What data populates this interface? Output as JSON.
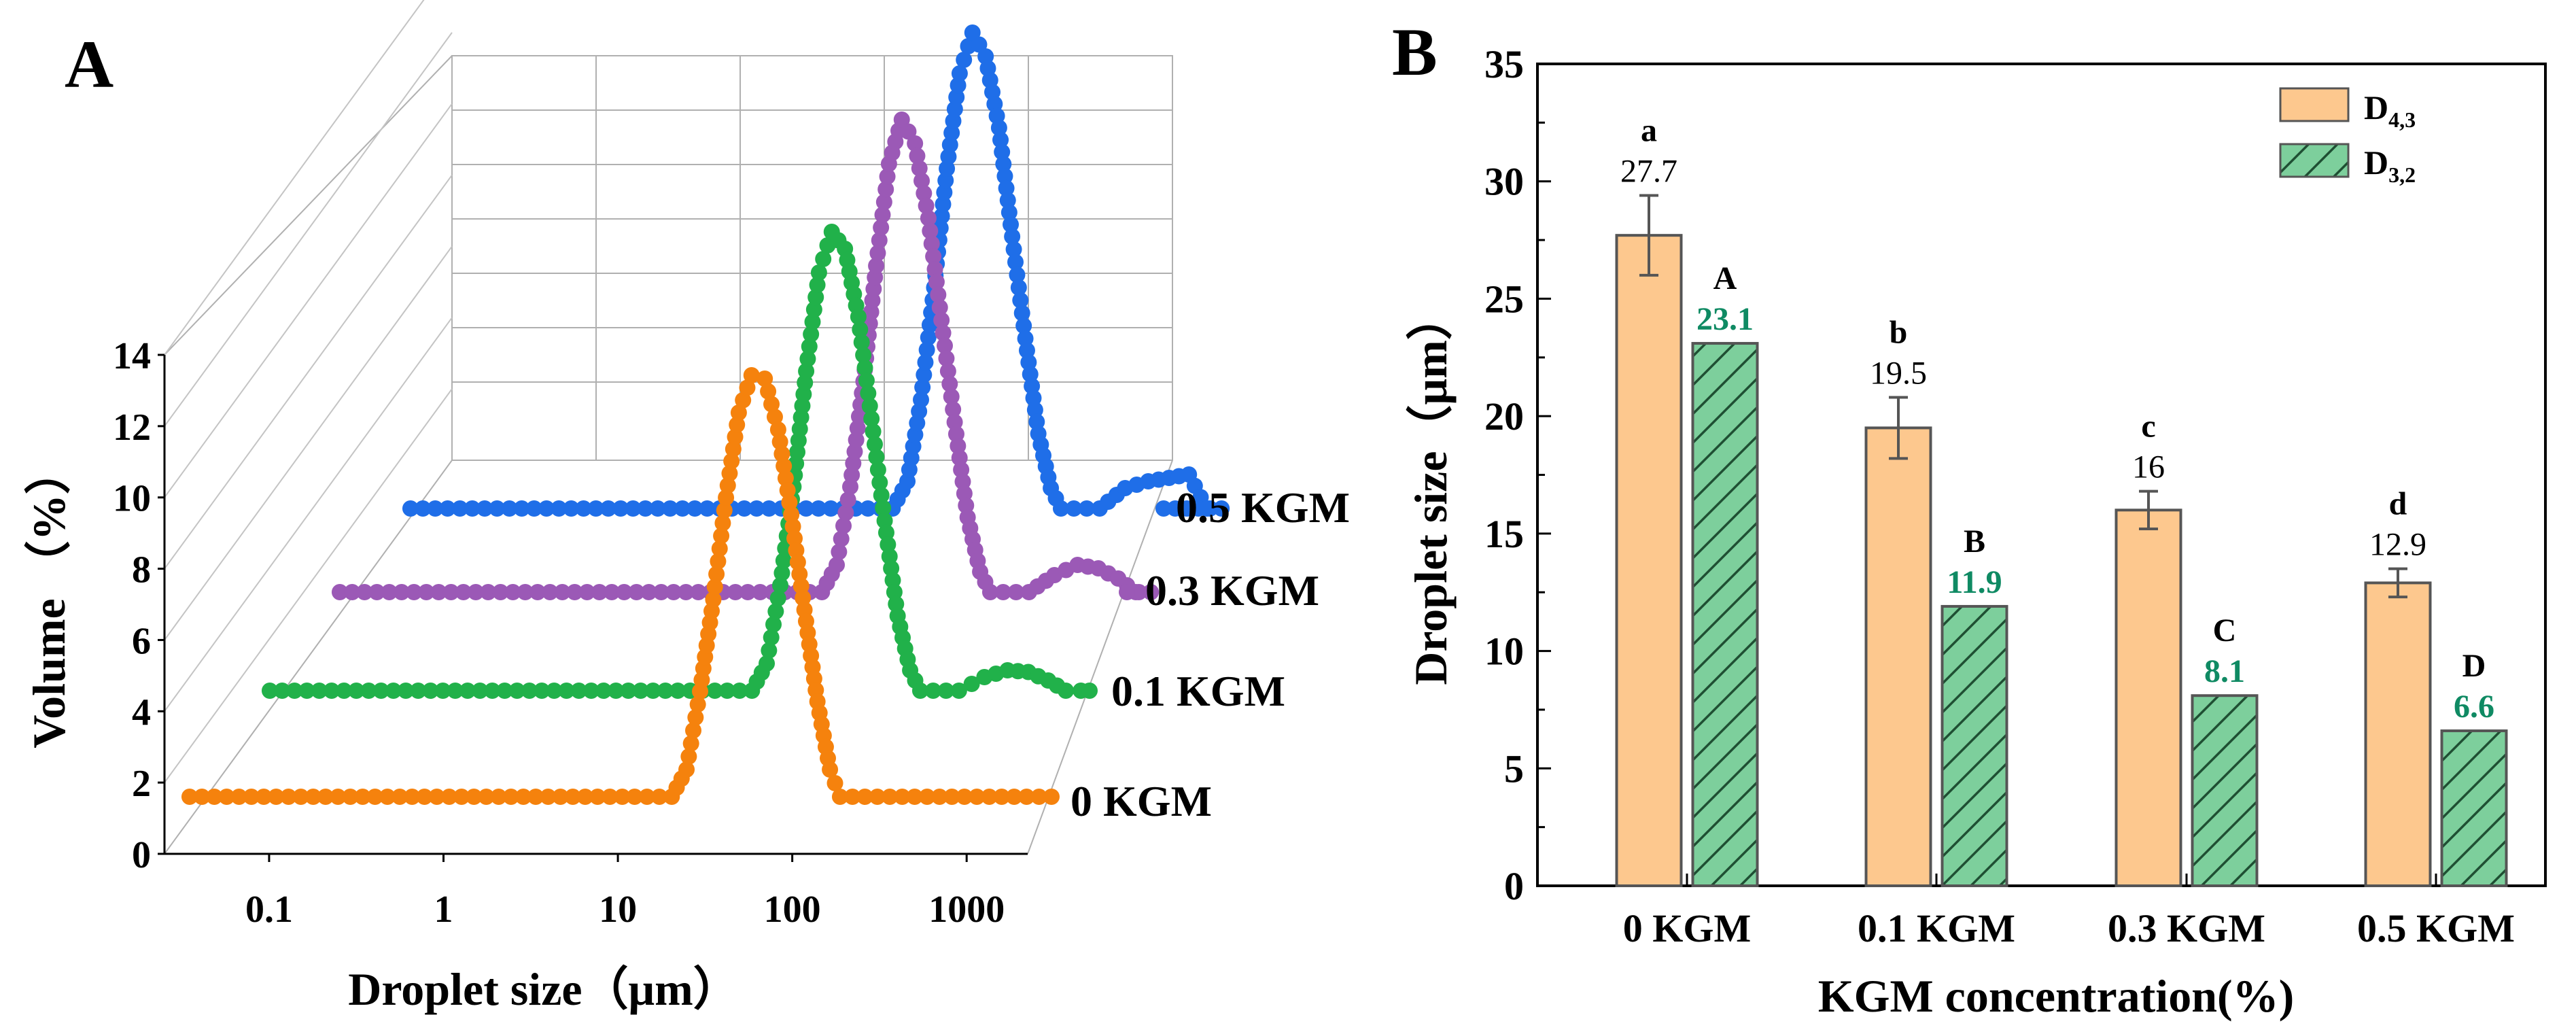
{
  "panels": {
    "a": {
      "label": "A"
    },
    "b": {
      "label": "B"
    }
  },
  "colors": {
    "orange": "#f5820d",
    "green": "#21b14a",
    "purple": "#9b59b6",
    "blue": "#1f6ee8",
    "bar_orange": "#fdc88e",
    "bar_green": "#7dcf9c",
    "value_green": "#0f8a63"
  },
  "chart_data": [
    {
      "type": "line",
      "subtype": "3d-waterfall",
      "panel": "A",
      "xlabel": "Droplet size（μm）",
      "ylabel": "Volume （%）",
      "x_ticks": [
        "0.1",
        "1",
        "10",
        "100",
        "1000"
      ],
      "y_ticks": [
        "0",
        "2",
        "4",
        "6",
        "8",
        "10",
        "12",
        "14"
      ],
      "xlim_log10": [
        -1.6,
        3.35
      ],
      "ylim": [
        0,
        14
      ],
      "series": [
        {
          "name": "0 KGM",
          "color": "#f5820d",
          "x": [
            13,
            15.8,
            18.9,
            22.5,
            26.6,
            31.5,
            37.3,
            44.4,
            53,
            63,
            75,
            89,
            105,
            120
          ],
          "y": [
            0,
            0.8,
            3.1,
            5.8,
            8.8,
            11.3,
            12.4,
            12.3,
            10.8,
            8.3,
            5.5,
            2.8,
            0.8,
            0
          ]
        },
        {
          "name": "0.1 KGM",
          "color": "#21b14a",
          "x": [
            13,
            15.8,
            18.9,
            22.5,
            26.6,
            31.5,
            37.3,
            44.4,
            53,
            63,
            75,
            89,
            105,
            120,
            200,
            280,
            380,
            500,
            650,
            820,
            1000
          ],
          "y": [
            0,
            0.8,
            3.1,
            6.0,
            9.4,
            12.3,
            13.5,
            13.0,
            11.0,
            8.0,
            5.0,
            2.2,
            0.6,
            0,
            0,
            0.4,
            0.6,
            0.55,
            0.3,
            0,
            0
          ]
        },
        {
          "name": "0.3 KGM",
          "color": "#9b59b6",
          "x": [
            13,
            15.8,
            18.9,
            22.5,
            26.6,
            31.5,
            37.3,
            44.4,
            53,
            63,
            75,
            89,
            105,
            120,
            200,
            280,
            380,
            500,
            650,
            820,
            1000
          ],
          "y": [
            0,
            0.8,
            3.1,
            6.2,
            9.6,
            12.6,
            13.9,
            13.2,
            11.0,
            8.0,
            5.0,
            2.2,
            0.6,
            0,
            0,
            0.5,
            0.8,
            0.7,
            0.4,
            0,
            0
          ]
        },
        {
          "name": "0.5 KGM",
          "color": "#1f6ee8",
          "x": [
            13,
            15.8,
            18.9,
            22.5,
            26.6,
            31.5,
            37.3,
            44.4,
            53,
            63,
            75,
            89,
            105,
            120,
            200,
            280,
            380,
            500,
            650,
            820,
            1000
          ],
          "y": [
            0,
            0.8,
            3.2,
            6.5,
            10.0,
            12.8,
            14.0,
            13.3,
            11.2,
            8.0,
            5.0,
            2.2,
            0.6,
            0,
            0,
            0.6,
            0.8,
            0.9,
            1.0,
            0,
            0
          ]
        }
      ]
    },
    {
      "type": "bar",
      "panel": "B",
      "xlabel": "KGM concentration(%)",
      "ylabel": "Droplet size（μm）",
      "ylim": [
        0,
        35
      ],
      "y_ticks": [
        "0",
        "5",
        "10",
        "15",
        "20",
        "25",
        "30",
        "35"
      ],
      "categories": [
        "0 KGM",
        "0.1 KGM",
        "0.3 KGM",
        "0.5 KGM"
      ],
      "series": [
        {
          "name": "D4,3",
          "legend_main": "D",
          "legend_sub": "4,3",
          "values": [
            27.7,
            19.5,
            16,
            12.9
          ],
          "errors": [
            1.7,
            1.3,
            0.8,
            0.6
          ],
          "value_labels": [
            "27.7",
            "19.5",
            "16",
            "12.9"
          ],
          "letters": [
            "a",
            "b",
            "c",
            "d"
          ]
        },
        {
          "name": "D3,2",
          "legend_main": "D",
          "legend_sub": "3,2",
          "values": [
            23.1,
            11.9,
            8.1,
            6.6
          ],
          "errors": [
            0,
            0,
            0,
            0
          ],
          "value_labels": [
            "23.1",
            "11.9",
            "8.1",
            "6.6"
          ],
          "letters": [
            "A",
            "B",
            "C",
            "D"
          ]
        }
      ]
    }
  ]
}
